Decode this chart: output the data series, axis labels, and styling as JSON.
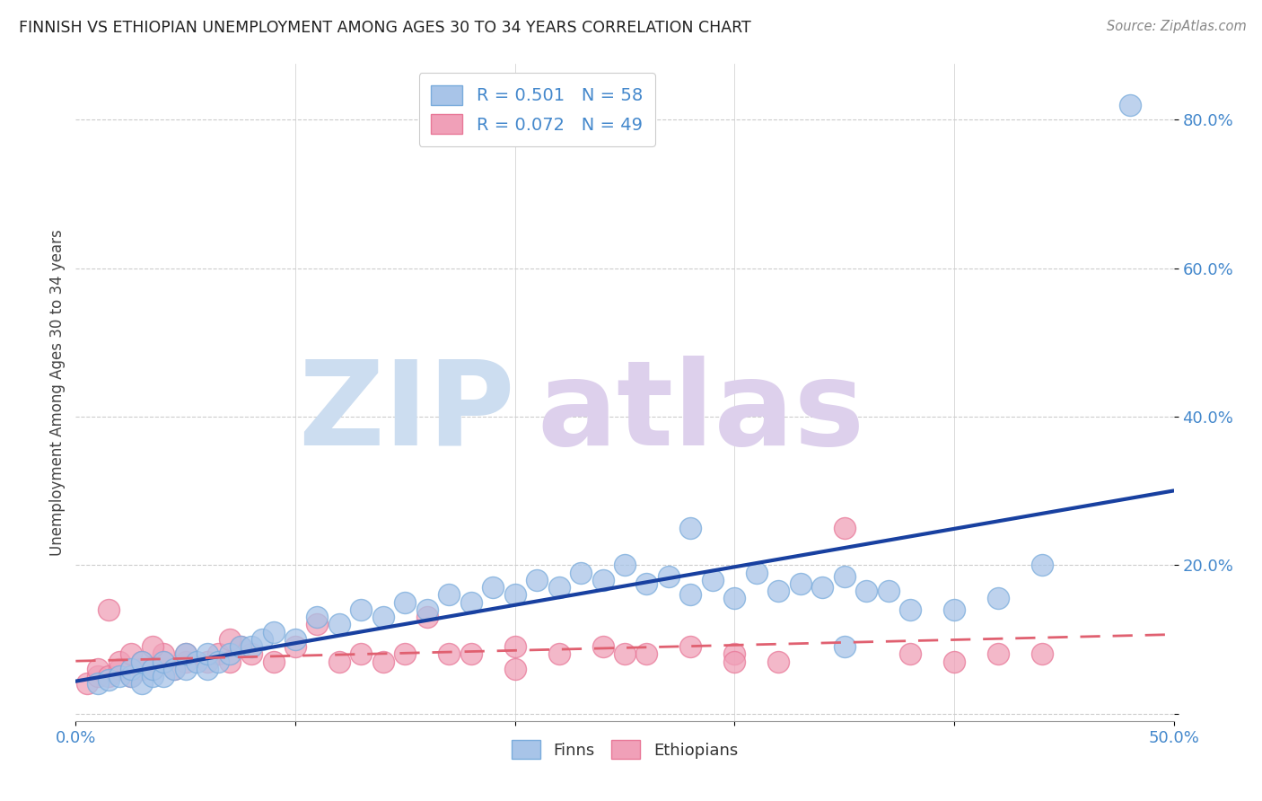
{
  "title": "FINNISH VS ETHIOPIAN UNEMPLOYMENT AMONG AGES 30 TO 34 YEARS CORRELATION CHART",
  "source": "Source: ZipAtlas.com",
  "ylabel": "Unemployment Among Ages 30 to 34 years",
  "xlim": [
    0.0,
    0.5
  ],
  "ylim": [
    -0.01,
    0.875
  ],
  "yticks": [
    0.0,
    0.2,
    0.4,
    0.6,
    0.8
  ],
  "ytick_labels": [
    "",
    "20.0%",
    "40.0%",
    "60.0%",
    "80.0%"
  ],
  "xticks": [
    0.0,
    0.1,
    0.2,
    0.3,
    0.4,
    0.5
  ],
  "xtick_labels": [
    "0.0%",
    "",
    "",
    "",
    "",
    "50.0%"
  ],
  "finns_color": "#a8c4e8",
  "ethiopians_color": "#f0a0b8",
  "finns_edge_color": "#7aacdc",
  "ethiopians_edge_color": "#e87898",
  "finns_line_color": "#1840a0",
  "ethiopians_line_color": "#e06070",
  "axis_label_color": "#4488cc",
  "title_color": "#222222",
  "source_color": "#888888",
  "grid_color": "#cccccc",
  "watermark_zip_color": "#ccddf0",
  "watermark_atlas_color": "#ddd0ec",
  "legend_text_color": "#4488cc",
  "legend_edge_color": "#cccccc",
  "finns_scatter_x": [
    0.01,
    0.015,
    0.02,
    0.025,
    0.025,
    0.03,
    0.03,
    0.035,
    0.035,
    0.04,
    0.04,
    0.045,
    0.05,
    0.05,
    0.055,
    0.06,
    0.06,
    0.065,
    0.07,
    0.075,
    0.08,
    0.085,
    0.09,
    0.1,
    0.11,
    0.12,
    0.13,
    0.14,
    0.15,
    0.16,
    0.17,
    0.18,
    0.19,
    0.2,
    0.21,
    0.22,
    0.23,
    0.24,
    0.25,
    0.26,
    0.27,
    0.28,
    0.29,
    0.3,
    0.31,
    0.32,
    0.33,
    0.34,
    0.35,
    0.36,
    0.37,
    0.38,
    0.4,
    0.42,
    0.44,
    0.35,
    0.28,
    0.48
  ],
  "finns_scatter_y": [
    0.04,
    0.045,
    0.05,
    0.05,
    0.06,
    0.04,
    0.07,
    0.05,
    0.06,
    0.05,
    0.07,
    0.06,
    0.06,
    0.08,
    0.07,
    0.06,
    0.08,
    0.07,
    0.08,
    0.09,
    0.09,
    0.1,
    0.11,
    0.1,
    0.13,
    0.12,
    0.14,
    0.13,
    0.15,
    0.14,
    0.16,
    0.15,
    0.17,
    0.16,
    0.18,
    0.17,
    0.19,
    0.18,
    0.2,
    0.175,
    0.185,
    0.16,
    0.18,
    0.155,
    0.19,
    0.165,
    0.175,
    0.17,
    0.09,
    0.165,
    0.165,
    0.14,
    0.14,
    0.155,
    0.2,
    0.185,
    0.25,
    0.82
  ],
  "ethiopians_scatter_x": [
    0.005,
    0.01,
    0.01,
    0.015,
    0.02,
    0.02,
    0.025,
    0.025,
    0.03,
    0.03,
    0.035,
    0.04,
    0.04,
    0.045,
    0.05,
    0.05,
    0.06,
    0.065,
    0.07,
    0.075,
    0.08,
    0.09,
    0.1,
    0.11,
    0.12,
    0.13,
    0.14,
    0.15,
    0.16,
    0.17,
    0.18,
    0.2,
    0.22,
    0.24,
    0.26,
    0.28,
    0.3,
    0.32,
    0.35,
    0.38,
    0.4,
    0.42,
    0.44,
    0.2,
    0.25,
    0.3,
    0.07,
    0.035,
    0.015
  ],
  "ethiopians_scatter_y": [
    0.04,
    0.05,
    0.06,
    0.05,
    0.06,
    0.07,
    0.05,
    0.08,
    0.06,
    0.07,
    0.06,
    0.07,
    0.08,
    0.06,
    0.07,
    0.08,
    0.07,
    0.08,
    0.07,
    0.09,
    0.08,
    0.07,
    0.09,
    0.12,
    0.07,
    0.08,
    0.07,
    0.08,
    0.13,
    0.08,
    0.08,
    0.09,
    0.08,
    0.09,
    0.08,
    0.09,
    0.08,
    0.07,
    0.25,
    0.08,
    0.07,
    0.08,
    0.08,
    0.06,
    0.08,
    0.07,
    0.1,
    0.09,
    0.14
  ]
}
